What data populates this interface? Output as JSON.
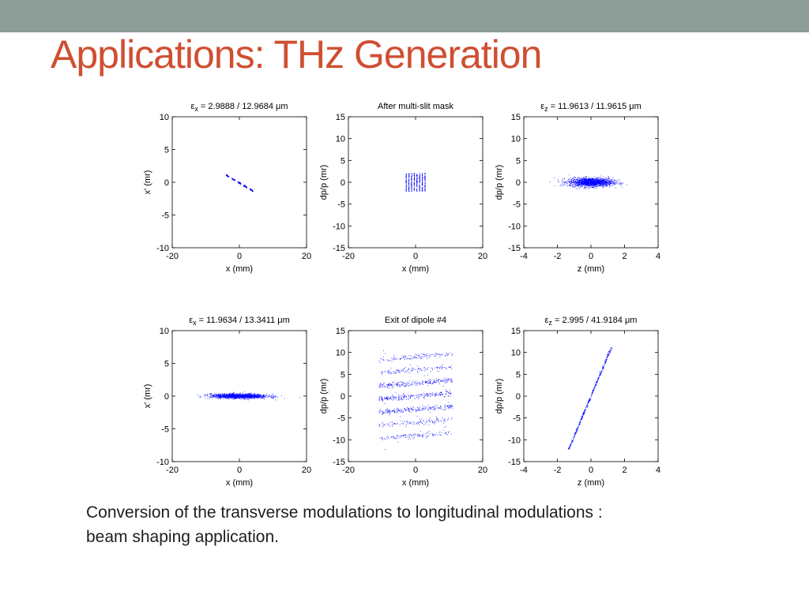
{
  "slide": {
    "title": "Applications: THz Generation",
    "caption_line1": "Conversion of the transverse modulations to longitudinal modulations :",
    "caption_line2": "beam shaping application.",
    "accent_color": "#cf4f32",
    "top_bar_color": "#8d9d98"
  },
  "chart_data": [
    {
      "type": "scatter",
      "title_prefix": "ε",
      "title_sub": "x",
      "title_rest": " = 2.9888 / 12.9684 μm",
      "xlabel": "x (mm)",
      "ylabel": "x' (mr)",
      "xlim": [
        -20,
        20
      ],
      "ylim": [
        -10,
        10
      ],
      "xticks": [
        -20,
        0,
        20
      ],
      "yticks": [
        -10,
        -5,
        0,
        5,
        10
      ],
      "color": "#0000ff",
      "structure": "five short parallel slits along a line from about (-4, 1.1) to (4, -1.3)"
    },
    {
      "type": "scatter",
      "title": "After multi-slit mask",
      "xlabel": "x (mm)",
      "ylabel": "dp/p (mr)",
      "xlim": [
        -20,
        20
      ],
      "ylim": [
        -15,
        15
      ],
      "xticks": [
        -20,
        0,
        20
      ],
      "yticks": [
        -15,
        -10,
        -5,
        0,
        5,
        10,
        15
      ],
      "color": "#0000ff",
      "structure": "eight vertical slits between x = -3 and 3, dp/p within about ±2"
    },
    {
      "type": "scatter",
      "title_prefix": "ε",
      "title_sub": "z",
      "title_rest": " = 11.9613 / 11.9615 μm",
      "xlabel": "z (mm)",
      "ylabel": "dp/p (mr)",
      "xlim": [
        -4,
        4
      ],
      "ylim": [
        -15,
        15
      ],
      "xticks": [
        -4,
        -2,
        0,
        2,
        4
      ],
      "yticks": [
        -15,
        -10,
        -5,
        0,
        5,
        10,
        15
      ],
      "color": "#0000ff",
      "structure": "elliptical gaussian cloud centered at 0, z within about ±2.3, dp/p within about ±1.5"
    },
    {
      "type": "scatter",
      "title_prefix": "ε",
      "title_sub": "x",
      "title_rest": " = 11.9634 / 13.3411 μm",
      "xlabel": "x (mm)",
      "ylabel": "x' (mr)",
      "xlim": [
        -20,
        20
      ],
      "ylim": [
        -10,
        10
      ],
      "xticks": [
        -20,
        0,
        20
      ],
      "yticks": [
        -10,
        -5,
        0,
        5,
        10
      ],
      "color": "#0000ff",
      "structure": "thin horizontal band, x within about ±14, x' within about ±0.5"
    },
    {
      "type": "scatter",
      "title": "Exit of dipole #4",
      "xlabel": "x (mm)",
      "ylabel": "dp/p (mr)",
      "xlim": [
        -20,
        20
      ],
      "ylim": [
        -15,
        15
      ],
      "xticks": [
        -20,
        0,
        20
      ],
      "yticks": [
        -15,
        -10,
        -5,
        0,
        5,
        10,
        15
      ],
      "color": "#0000ff",
      "structure": "about seven slightly tilted horizontal bands at dp/p ≈ -9, -6, -3, 0, 3, 6, 9 spanning x ≈ -12..12"
    },
    {
      "type": "scatter",
      "title_prefix": "ε",
      "title_sub": "z",
      "title_rest": " = 2.995 / 41.9184 μm",
      "xlabel": "z (mm)",
      "ylabel": "dp/p (mr)",
      "xlim": [
        -4,
        4
      ],
      "ylim": [
        -15,
        15
      ],
      "xticks": [
        -4,
        -2,
        0,
        2,
        4
      ],
      "yticks": [
        -15,
        -10,
        -5,
        0,
        5,
        10,
        15
      ],
      "color": "#0000ff",
      "structure": "steep diagonal line from (-1.3, -12) to (1.2, 11.5) made of small clusters"
    }
  ]
}
